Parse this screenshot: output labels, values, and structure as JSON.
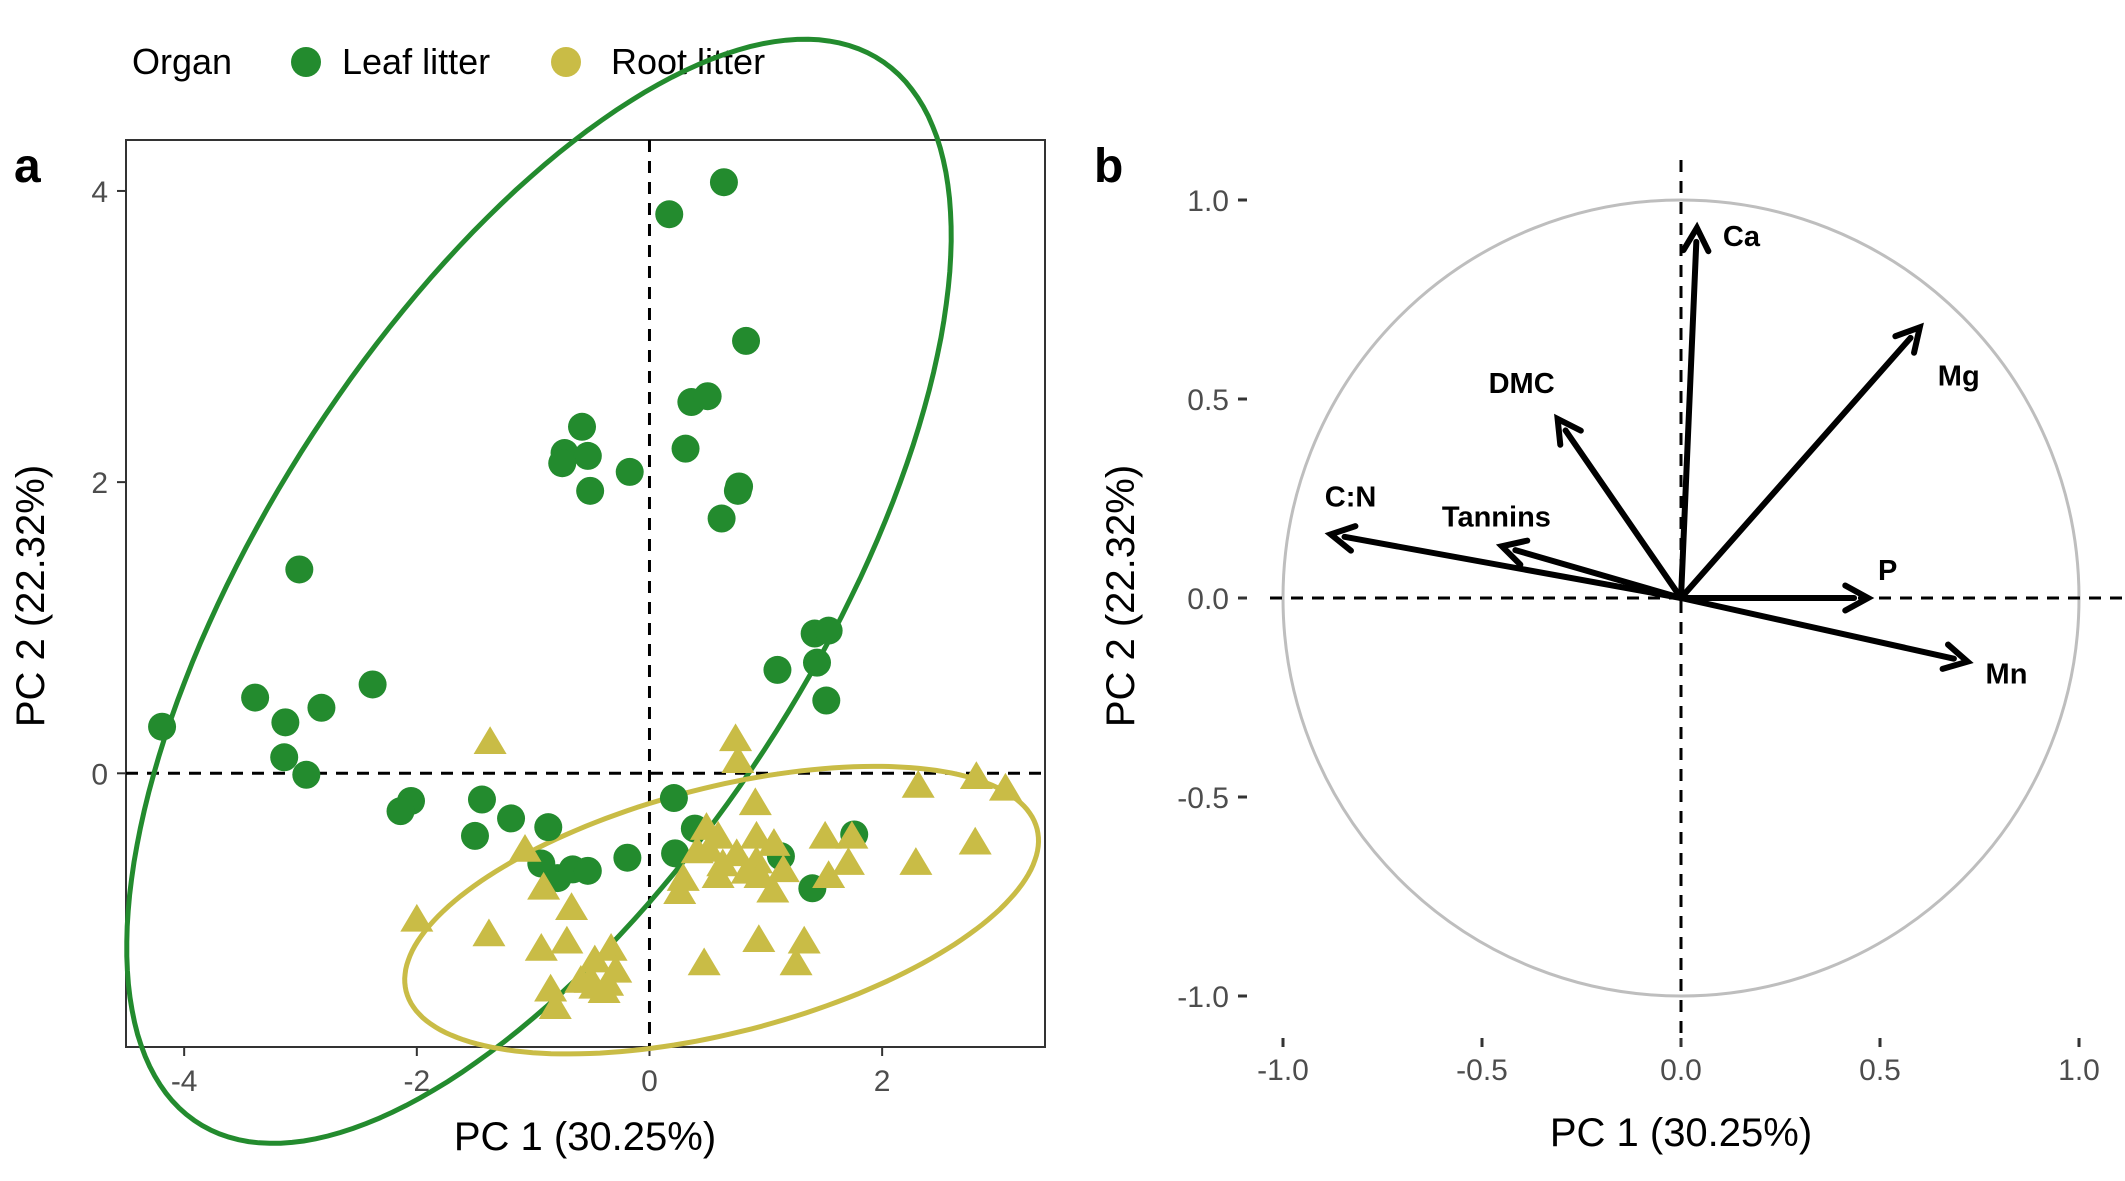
{
  "legend": {
    "title": "Organ",
    "items": [
      {
        "label": "Leaf litter",
        "color": "#238b2e",
        "shape": "circle"
      },
      {
        "label": "Root litter",
        "color": "#c9bc46",
        "shape": "triangle"
      }
    ]
  },
  "chart_data": [
    {
      "panel": "a",
      "type": "scatter",
      "xlabel": "PC 1 (30.25%)",
      "ylabel": "PC 2 (22.32%)",
      "xlim": [
        -4.5,
        3.4
      ],
      "ylim": [
        -1.88,
        4.35
      ],
      "xticks": [
        -4,
        -2,
        0,
        2
      ],
      "yticks": [
        0,
        2,
        4
      ],
      "reference_lines": {
        "x": 0,
        "y": 0,
        "style": "dashed"
      },
      "series": [
        {
          "name": "Leaf litter",
          "color": "#238b2e",
          "marker": "circle",
          "points": [
            [
              0.64,
              4.06
            ],
            [
              0.17,
              3.84
            ],
            [
              0.83,
              2.97
            ],
            [
              0.36,
              2.55
            ],
            [
              0.5,
              2.59
            ],
            [
              0.31,
              2.23
            ],
            [
              0.77,
              1.97
            ],
            [
              0.76,
              1.94
            ],
            [
              0.62,
              1.75
            ],
            [
              -0.58,
              2.38
            ],
            [
              -0.73,
              2.2
            ],
            [
              -0.53,
              2.18
            ],
            [
              -0.75,
              2.13
            ],
            [
              -0.17,
              2.07
            ],
            [
              -0.51,
              1.94
            ],
            [
              -3.01,
              1.4
            ],
            [
              -2.38,
              0.61
            ],
            [
              -3.39,
              0.52
            ],
            [
              -3.13,
              0.35
            ],
            [
              -2.82,
              0.45
            ],
            [
              -3.14,
              0.11
            ],
            [
              -2.95,
              -0.01
            ],
            [
              -4.19,
              0.32
            ],
            [
              1.42,
              0.96
            ],
            [
              1.54,
              0.98
            ],
            [
              1.44,
              0.76
            ],
            [
              1.1,
              0.71
            ],
            [
              1.52,
              0.5
            ],
            [
              -2.05,
              -0.19
            ],
            [
              -2.14,
              -0.26
            ],
            [
              -1.44,
              -0.18
            ],
            [
              -1.19,
              -0.31
            ],
            [
              -0.87,
              -0.37
            ],
            [
              -1.5,
              -0.43
            ],
            [
              -0.93,
              -0.62
            ],
            [
              -0.79,
              -0.72
            ],
            [
              -0.66,
              -0.66
            ],
            [
              -0.53,
              -0.67
            ],
            [
              -0.19,
              -0.58
            ],
            [
              0.21,
              -0.17
            ],
            [
              0.39,
              -0.38
            ],
            [
              0.22,
              -0.55
            ],
            [
              1.13,
              -0.57
            ],
            [
              1.4,
              -0.79
            ],
            [
              1.76,
              -0.42
            ]
          ]
        },
        {
          "name": "Root litter",
          "color": "#c9bc46",
          "marker": "triangle",
          "points": [
            [
              -1.37,
              0.22
            ],
            [
              0.74,
              0.24
            ],
            [
              0.76,
              0.09
            ],
            [
              0.91,
              -0.2
            ],
            [
              2.31,
              -0.08
            ],
            [
              2.81,
              -0.02
            ],
            [
              3.06,
              -0.1
            ],
            [
              2.8,
              -0.47
            ],
            [
              1.74,
              -0.43
            ],
            [
              1.51,
              -0.43
            ],
            [
              1.71,
              -0.61
            ],
            [
              2.29,
              -0.61
            ],
            [
              1.54,
              -0.7
            ],
            [
              0.49,
              -0.37
            ],
            [
              0.59,
              -0.43
            ],
            [
              0.51,
              -0.52
            ],
            [
              0.92,
              -0.43
            ],
            [
              1.07,
              -0.48
            ],
            [
              0.41,
              -0.53
            ],
            [
              0.75,
              -0.55
            ],
            [
              0.63,
              -0.62
            ],
            [
              0.92,
              -0.6
            ],
            [
              1.15,
              -0.66
            ],
            [
              0.95,
              -0.7
            ],
            [
              0.59,
              -0.7
            ],
            [
              0.29,
              -0.72
            ],
            [
              0.26,
              -0.81
            ],
            [
              1.06,
              -0.8
            ],
            [
              0.84,
              -0.67
            ],
            [
              -1.07,
              -0.52
            ],
            [
              -0.91,
              -0.78
            ],
            [
              -0.67,
              -0.92
            ],
            [
              -2.0,
              -1.0
            ],
            [
              -1.38,
              -1.1
            ],
            [
              -0.93,
              -1.2
            ],
            [
              -0.71,
              -1.15
            ],
            [
              -0.33,
              -1.2
            ],
            [
              -0.47,
              -1.28
            ],
            [
              -0.59,
              -1.42
            ],
            [
              -0.51,
              -1.42
            ],
            [
              -0.39,
              -1.49
            ],
            [
              -0.29,
              -1.35
            ],
            [
              -0.85,
              -1.48
            ],
            [
              -0.81,
              -1.6
            ],
            [
              -0.47,
              -1.46
            ],
            [
              -0.36,
              -1.44
            ],
            [
              0.47,
              -1.3
            ],
            [
              0.94,
              -1.14
            ],
            [
              1.33,
              -1.15
            ],
            [
              1.26,
              -1.3
            ]
          ]
        }
      ],
      "ellipses": [
        {
          "series": "Leaf litter",
          "color": "#238b2e",
          "center": [
            -0.95,
            1.25
          ],
          "semi_axes": [
            4.71,
            2.18
          ],
          "angle_deg": 48
        },
        {
          "series": "Root litter",
          "color": "#c9bc46",
          "center": [
            0.62,
            -0.94
          ],
          "semi_axes": [
            2.77,
            0.85
          ],
          "angle_deg": 11
        }
      ]
    },
    {
      "panel": "b",
      "type": "vector",
      "xlabel": "PC 1 (30.25%)",
      "ylabel": "PC 2 (22.32%)",
      "xlim": [
        -1.12,
        1.12
      ],
      "ylim": [
        -1.12,
        1.12
      ],
      "xticks": [
        -1.0,
        -0.5,
        0.0,
        0.5,
        1.0
      ],
      "xtick_labels": [
        "-1.0",
        "-0.5",
        "0.0",
        "0.5",
        "1.0"
      ],
      "yticks": [
        1.0,
        0.5,
        0.0,
        -0.5,
        -1.0
      ],
      "ytick_labels": [
        "1.0",
        "0.5",
        "0.0",
        "-0.5",
        "-1.0"
      ],
      "reference_lines": {
        "x": 0,
        "y": 0,
        "style": "dashed"
      },
      "unit_circle": {
        "radius": 1,
        "color": "#bebebe"
      },
      "vectors": [
        {
          "label": "Ca",
          "x": 0.04,
          "y": 0.93
        },
        {
          "label": "Mg",
          "x": 0.6,
          "y": 0.68
        },
        {
          "label": "DMC",
          "x": -0.31,
          "y": 0.45
        },
        {
          "label": "C:N",
          "x": -0.88,
          "y": 0.16
        },
        {
          "label": "Tannins",
          "x": -0.45,
          "y": 0.13
        },
        {
          "label": "P",
          "x": 0.47,
          "y": 0.0
        },
        {
          "label": "Mn",
          "x": 0.72,
          "y": -0.16
        }
      ]
    }
  ]
}
